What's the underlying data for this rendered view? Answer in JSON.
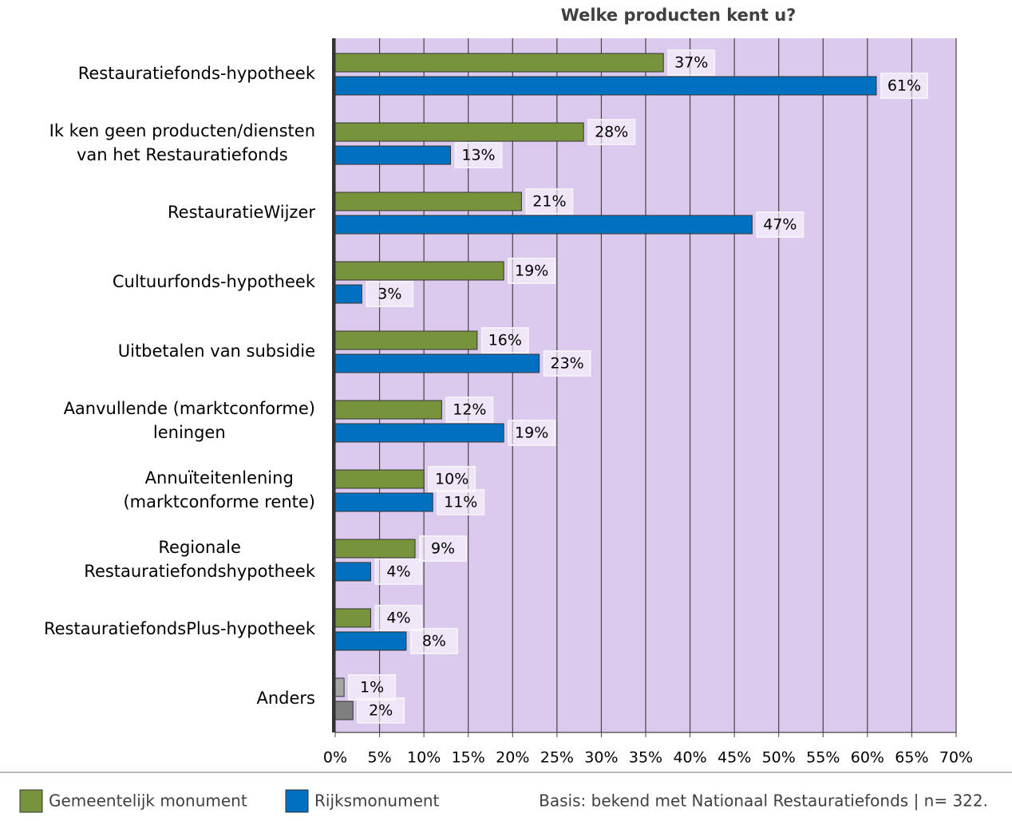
{
  "chart_data": {
    "type": "hbar",
    "title": "Welke producten kent u?",
    "categories": [
      "Restauratiefonds-hypotheek",
      "Ik ken geen producten/diensten\nvan het Restauratiefonds",
      "RestauratieWijzer",
      "Cultuurfonds-hypotheek",
      "Uitbetalen van subsidie",
      "Aanvullende (marktconforme)\nleningen",
      "Annuïteitenlening\n(marktconforme rente)",
      "Regionale\nRestauratiefondshypotheek",
      "RestauratiefondsPlus-hypotheek",
      "Anders"
    ],
    "series": [
      {
        "name": "Gemeentelijk monument",
        "color": "#77933c",
        "colors": [
          "#77933c",
          "#77933c",
          "#77933c",
          "#77933c",
          "#77933c",
          "#77933c",
          "#77933c",
          "#77933c",
          "#77933c",
          "#a6a6a6"
        ],
        "values": [
          37,
          28,
          21,
          19,
          16,
          12,
          10,
          9,
          4,
          1
        ],
        "value_labels": [
          "37%",
          "28%",
          "21%",
          "19%",
          "16%",
          "12%",
          "10%",
          "9%",
          "4%",
          "1%"
        ]
      },
      {
        "name": "Rijksmonument",
        "color": "#0070c0",
        "colors": [
          "#0070c0",
          "#0070c0",
          "#0070c0",
          "#0070c0",
          "#0070c0",
          "#0070c0",
          "#0070c0",
          "#0070c0",
          "#0070c0",
          "#7f7f7f"
        ],
        "values": [
          61,
          13,
          47,
          3,
          23,
          19,
          11,
          4,
          8,
          2
        ],
        "value_labels": [
          "61%",
          "13%",
          "47%",
          "3%",
          "23%",
          "19%",
          "11%",
          "4%",
          "8%",
          "2%"
        ]
      }
    ],
    "xlim": [
      0,
      70
    ],
    "xticks": [
      {
        "value": 0,
        "label": "0%"
      },
      {
        "value": 5,
        "label": "5%"
      },
      {
        "value": 10,
        "label": "10%"
      },
      {
        "value": 15,
        "label": "15%"
      },
      {
        "value": 20,
        "label": "20%"
      },
      {
        "value": 25,
        "label": "25%"
      },
      {
        "value": 30,
        "label": "30%"
      },
      {
        "value": 35,
        "label": "35%"
      },
      {
        "value": 40,
        "label": "40%"
      },
      {
        "value": 45,
        "label": "45%"
      },
      {
        "value": 50,
        "label": "50%"
      },
      {
        "value": 55,
        "label": "55%"
      },
      {
        "value": 60,
        "label": "60%"
      },
      {
        "value": 65,
        "label": "65%"
      },
      {
        "value": 70,
        "label": "70%"
      }
    ],
    "grid": true,
    "background": "#dccaee",
    "note": "Basis: bekend met Nationaal Restauratiefonds | n= 322."
  }
}
